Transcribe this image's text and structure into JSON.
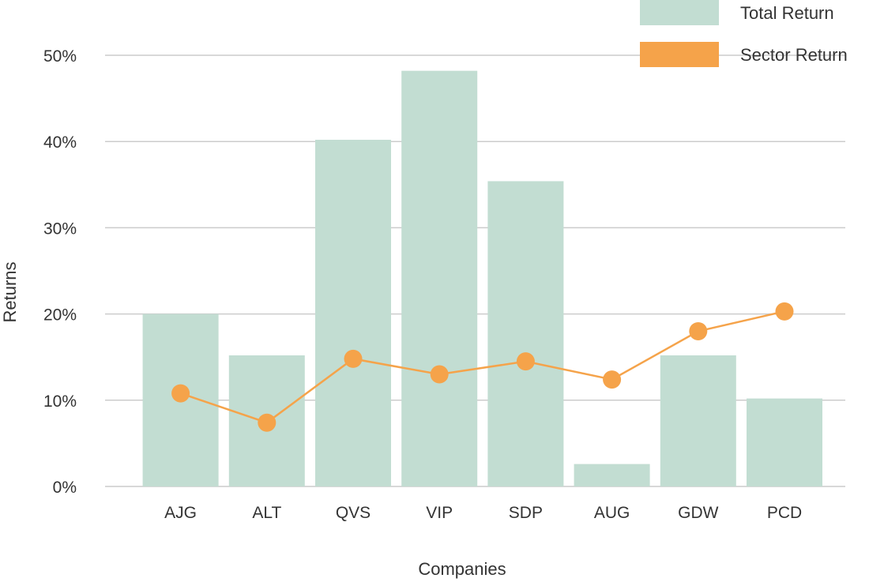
{
  "chart_data": {
    "type": "bar",
    "categories": [
      "AJG",
      "ALT",
      "QVS",
      "VIP",
      "SDP",
      "AUG",
      "GDW",
      "PCD"
    ],
    "series": [
      {
        "name": "Total Return",
        "type": "bar",
        "color": "#c2ddd2",
        "values": [
          20,
          15.2,
          40.2,
          48.2,
          35.4,
          2.6,
          15.2,
          10.2
        ]
      },
      {
        "name": "Sector Return",
        "type": "line",
        "color": "#f5a34a",
        "values": [
          10.8,
          7.4,
          14.8,
          13.0,
          14.5,
          12.4,
          18.0,
          20.3
        ]
      }
    ],
    "xlabel": "Companies",
    "ylabel": "Returns",
    "ylim": [
      0,
      50
    ],
    "yticks": [
      0,
      10,
      20,
      30,
      40,
      50
    ],
    "ytick_labels": [
      "0%",
      "10%",
      "20%",
      "30%",
      "40%",
      "50%"
    ],
    "grid": true,
    "legend_position": "top-right"
  }
}
